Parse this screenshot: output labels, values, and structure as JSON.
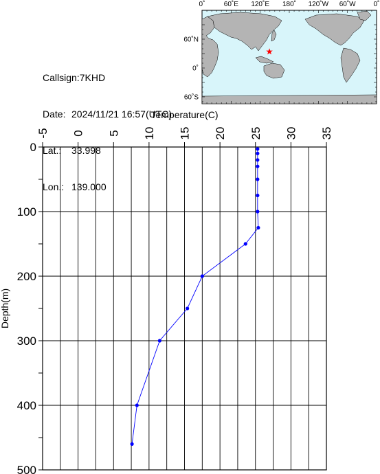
{
  "station": {
    "callsign_label": "Callsign:",
    "callsign": "7KHD",
    "date_label": "Date:",
    "date": "2024/11/21 16:57(UTC)",
    "lat_label": "Lat.:",
    "lat": "33.998",
    "lon_label": "Lon.:",
    "lon": "139.000"
  },
  "map": {
    "lon_labels": [
      "0˚",
      "60˚E",
      "120˚E",
      "180˚",
      "120˚W",
      "60˚W",
      "0˚"
    ],
    "lat_labels": [
      "60˚N",
      "0˚",
      "60˚S"
    ],
    "ocean_color": "#d8f5fa",
    "land_color": "#b4b4b4",
    "marker_color": "#ff0000",
    "marker_lat": 33.998,
    "marker_lon": 139.0
  },
  "chart_data": {
    "type": "line",
    "xlabel": "Temperature(C)",
    "ylabel": "Depth(m)",
    "x_axis_position": "top",
    "xlim": [
      -5,
      35
    ],
    "ylim": [
      500,
      0
    ],
    "x_ticks": [
      -5,
      0,
      5,
      10,
      15,
      20,
      25,
      30,
      35
    ],
    "y_ticks": [
      0,
      100,
      200,
      300,
      400,
      500
    ],
    "grid": true,
    "series_color": "#0000ff",
    "series": [
      {
        "name": "",
        "x": [
          25.3,
          25.3,
          25.3,
          25.3,
          25.3,
          25.3,
          25.3,
          25.4,
          23.6,
          17.5,
          15.4,
          11.5,
          8.3,
          7.6
        ],
        "y": [
          3,
          10,
          20,
          30,
          50,
          75,
          100,
          125,
          150,
          200,
          250,
          300,
          400,
          460
        ]
      }
    ]
  }
}
